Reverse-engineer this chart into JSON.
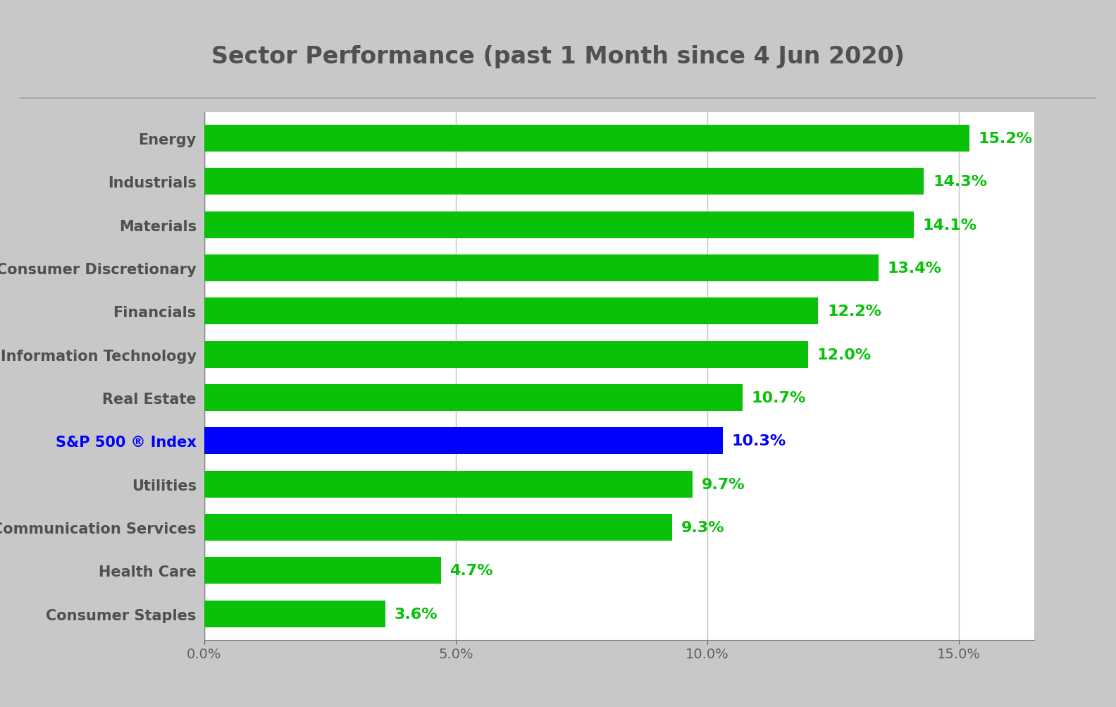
{
  "title": "Sector Performance (past 1 Month since 4 Jun 2020)",
  "categories": [
    "Energy",
    "Industrials",
    "Materials",
    "Consumer Discretionary",
    "Financials",
    "Information Technology",
    "Real Estate",
    "S&P 500 ® Index",
    "Utilities",
    "Communication Services",
    "Health Care",
    "Consumer Staples"
  ],
  "values": [
    15.2,
    14.3,
    14.1,
    13.4,
    12.2,
    12.0,
    10.7,
    10.3,
    9.7,
    9.3,
    4.7,
    3.6
  ],
  "bar_colors": [
    "#08C108",
    "#08C108",
    "#08C108",
    "#08C108",
    "#08C108",
    "#08C108",
    "#08C108",
    "#0000FF",
    "#08C108",
    "#08C108",
    "#08C108",
    "#08C108"
  ],
  "value_labels": [
    "15.2%",
    "14.3%",
    "14.1%",
    "13.4%",
    "12.2%",
    "12.0%",
    "10.7%",
    "10.3%",
    "9.7%",
    "9.3%",
    "4.7%",
    "3.6%"
  ],
  "sp500_label": "S&P 500 ® Index",
  "sp500_color": "#0000FF",
  "value_color_green": "#08C108",
  "xlim": [
    0,
    16.5
  ],
  "xticks": [
    0,
    5,
    10,
    15
  ],
  "xticklabels": [
    "0.0%",
    "5.0%",
    "10.0%",
    "15.0%"
  ],
  "background_color": "#FFFFFF",
  "outer_background": "#C8C8C8",
  "title_fontsize": 24,
  "title_color": "#505050",
  "label_fontsize": 15,
  "value_fontsize": 16,
  "tick_fontsize": 14,
  "bar_height": 0.62,
  "grid_color": "#C0C0C0",
  "border_color": "#A0A0A0"
}
